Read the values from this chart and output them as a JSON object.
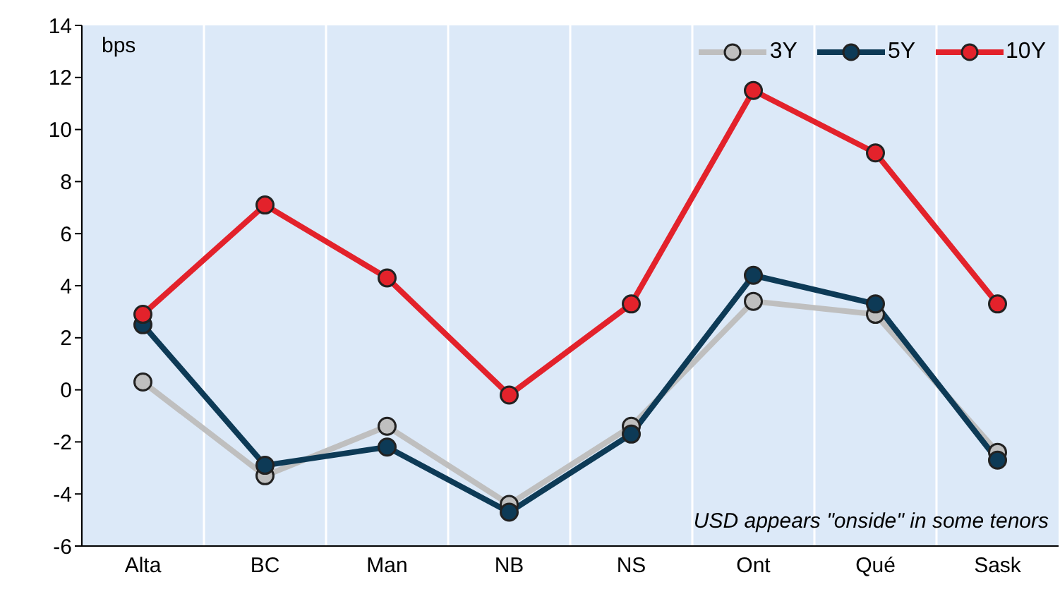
{
  "chart_data": {
    "type": "line",
    "categories": [
      "Alta",
      "BC",
      "Man",
      "NB",
      "NS",
      "Ont",
      "Qué",
      "Sask"
    ],
    "series": [
      {
        "name": "3Y",
        "color": "#bfbfbf",
        "values": [
          0.3,
          -3.3,
          -1.4,
          -4.4,
          -1.4,
          3.4,
          2.9,
          -2.4
        ]
      },
      {
        "name": "5Y",
        "color": "#0d3a56",
        "values": [
          2.5,
          -2.9,
          -2.2,
          -4.7,
          -1.7,
          4.4,
          3.3,
          -2.7
        ]
      },
      {
        "name": "10Y",
        "color": "#e3222b",
        "values": [
          2.9,
          7.1,
          4.3,
          -0.2,
          3.3,
          11.5,
          9.1,
          3.3
        ]
      }
    ],
    "ylim": [
      -6,
      14
    ],
    "yticks": [
      -6,
      -4,
      -2,
      0,
      2,
      4,
      6,
      8,
      10,
      12,
      14
    ],
    "grid": "x",
    "legend": "top right",
    "marker": "circle",
    "line_style": "solid",
    "annotations": [
      "bps",
      "USD appears \"onside\" in some tenors"
    ]
  }
}
